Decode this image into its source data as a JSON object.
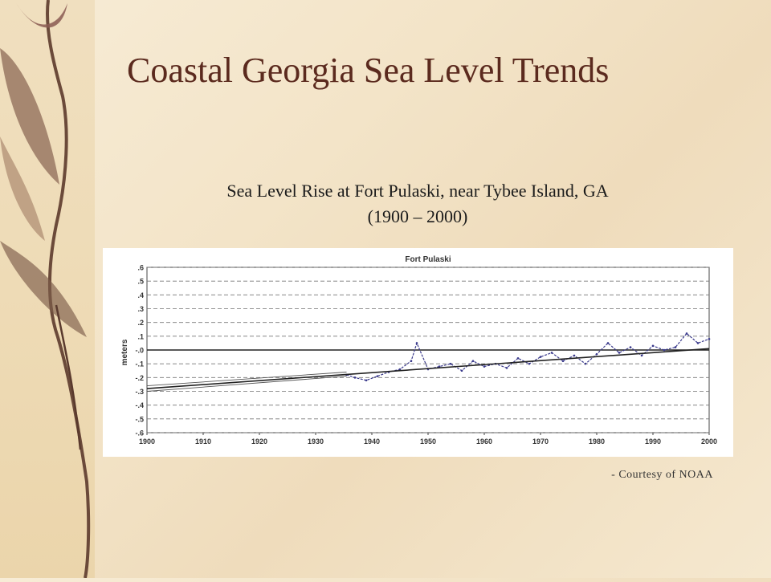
{
  "slide": {
    "title": "Coastal Georgia Sea Level Trends",
    "subtitle_line1": "Sea Level Rise at Fort Pulaski, near Tybee Island, GA",
    "subtitle_line2": "(1900 – 2000)",
    "credit": "- Courtesy of NOAA"
  },
  "colors": {
    "title": "#5b2a1e",
    "series": "#3a3a8c",
    "trend": "#222222",
    "leaf": "#6b4a3a"
  },
  "chart_data": {
    "type": "line",
    "title": "Fort Pulaski",
    "xlabel": "",
    "ylabel": "meters",
    "xlim": [
      1900,
      2000
    ],
    "ylim": [
      -0.6,
      0.6
    ],
    "x_ticks": [
      1900,
      1910,
      1920,
      1930,
      1940,
      1950,
      1960,
      1970,
      1980,
      1990,
      2000
    ],
    "y_ticks": [
      0.6,
      0.5,
      0.4,
      0.3,
      0.2,
      0.1,
      0.0,
      -0.1,
      -0.2,
      -0.3,
      -0.4,
      -0.5,
      -0.6
    ],
    "y_tick_labels": [
      ".6",
      ".5",
      ".4",
      ".3",
      ".2",
      ".1",
      "-.0",
      "-.1",
      "-.2",
      "-.3",
      "-.4",
      "-.5",
      "-.6"
    ],
    "grid": "horizontal dashed",
    "reference_line": 0.0,
    "series": [
      {
        "style": "monthly mean (dashed)",
        "x": [
          1935.5,
          1937,
          1939,
          1941,
          1943,
          1945,
          1947,
          1948,
          1950,
          1952,
          1954,
          1956,
          1958,
          1960,
          1962,
          1964,
          1966,
          1968,
          1970,
          1972,
          1974,
          1976,
          1978,
          1980,
          1982,
          1984,
          1986,
          1988,
          1990,
          1992,
          1994,
          1996,
          1998,
          2000
        ],
        "y": [
          -0.18,
          -0.2,
          -0.22,
          -0.19,
          -0.16,
          -0.14,
          -0.08,
          0.05,
          -0.14,
          -0.12,
          -0.1,
          -0.15,
          -0.08,
          -0.12,
          -0.1,
          -0.13,
          -0.06,
          -0.1,
          -0.05,
          -0.02,
          -0.08,
          -0.04,
          -0.1,
          -0.03,
          0.05,
          -0.02,
          0.02,
          -0.04,
          0.03,
          0.0,
          0.02,
          0.12,
          0.05,
          0.08
        ]
      },
      {
        "style": "linear trend",
        "x": [
          1900,
          2000
        ],
        "y": [
          -0.28,
          0.01
        ]
      },
      {
        "style": "upper confidence",
        "x": [
          1900,
          1935.5
        ],
        "y": [
          -0.26,
          -0.16
        ]
      },
      {
        "style": "lower confidence",
        "x": [
          1900,
          1935.5
        ],
        "y": [
          -0.3,
          -0.19
        ]
      }
    ]
  }
}
